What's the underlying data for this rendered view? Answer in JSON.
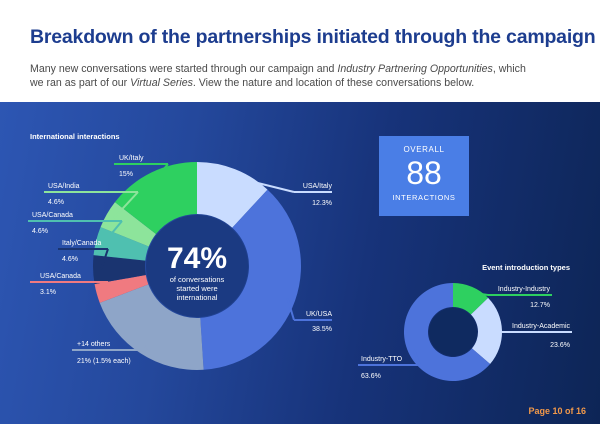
{
  "header": {
    "title": "Breakdown of the partnerships initiated through the campaign",
    "intro_1": "Many new conversations were started through our campaign and ",
    "intro_2": "Industry Partnering Opportunities",
    "intro_3": ", which we ran as part of our ",
    "intro_4": "Virtual Series",
    "intro_5": ". View the nature and location of these conversations below."
  },
  "overall": {
    "label": "OVERALL",
    "value": "88",
    "sub": "INTERACTIONS"
  },
  "page": {
    "number": "Page 10 of 16"
  },
  "chart_data": [
    {
      "type": "pie",
      "title": "International interactions",
      "center_value": "74%",
      "center_text": [
        "of conversations",
        "started were",
        "international"
      ],
      "slices": [
        {
          "name": "USA/Italy",
          "value": 12.3,
          "label": "12.3%",
          "color": "#c9dcff"
        },
        {
          "name": "UK/USA",
          "value": 38.5,
          "label": "38.5%",
          "color": "#4d73db"
        },
        {
          "name": "+14 others",
          "value": 21,
          "label": "21% (1.5% each)",
          "color": "#8ea5c8"
        },
        {
          "name": "USA/Canada",
          "value": 3.1,
          "label": "3.1%",
          "color": "#f07a80"
        },
        {
          "name": "Italy/Canada",
          "value": 4.6,
          "label": "4.6%",
          "color": "#1a3470"
        },
        {
          "name": "USA/Canada",
          "value": 4.6,
          "label": "4.6%",
          "color": "#4fc0b0"
        },
        {
          "name": "USA/India",
          "value": 4.6,
          "label": "4.6%",
          "color": "#8de49b"
        },
        {
          "name": "UK/Italy",
          "value": 15,
          "label": "15%",
          "color": "#2ed060"
        }
      ]
    },
    {
      "type": "pie",
      "title": "Event introduction types",
      "slices": [
        {
          "name": "Industry-Industry",
          "value": 12.7,
          "label": "12.7%",
          "color": "#2ed060"
        },
        {
          "name": "Industry-Academic",
          "value": 23.6,
          "label": "23.6%",
          "color": "#c9dcff"
        },
        {
          "name": "Industry-TTO",
          "value": 63.6,
          "label": "63.6%",
          "color": "#4d73db"
        }
      ]
    }
  ]
}
